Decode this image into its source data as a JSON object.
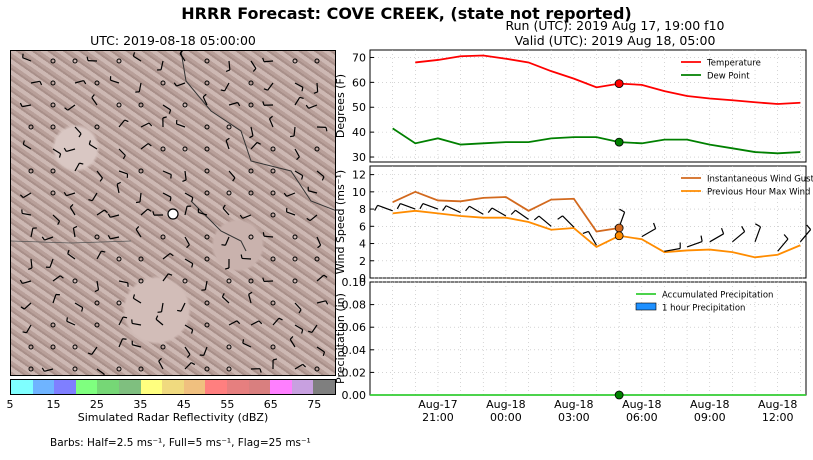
{
  "header": {
    "title": "HRRR Forecast: COVE CREEK, (state not reported)",
    "run": "Run (UTC): 2019 Aug 17, 19:00 f10",
    "valid": "Valid (UTC): 2019 Aug 18, 05:00"
  },
  "map": {
    "title": "UTC: 2019-08-18 05:00:00",
    "colorbar": {
      "label": "Simulated Radar Reflectivity (dBZ)",
      "ticks": [
        "5",
        "15",
        "25",
        "35",
        "45",
        "55",
        "65",
        "75"
      ],
      "colors": [
        "#7fffff",
        "#6fb4ff",
        "#7f7fff",
        "#7fff7f",
        "#76d776",
        "#7fbf7f",
        "#ffff7f",
        "#f0da7f",
        "#f0c07f",
        "#ff7f7f",
        "#e67f7f",
        "#d97f7f",
        "#ff7fff",
        "#c8a0e0",
        "#7f7f7f"
      ]
    },
    "barbs_note": "Barbs: Half=2.5 ms⁻¹, Full=5 ms⁻¹, Flag=25 ms⁻¹"
  },
  "chart_data": [
    {
      "type": "line",
      "ylabel": "Degrees (F)",
      "ylim": [
        28,
        73
      ],
      "yticks": [
        30,
        40,
        50,
        60,
        70
      ],
      "x_hours_labels": [
        "Aug-17\n21:00",
        "Aug-18\n00:00",
        "Aug-18\n03:00",
        "Aug-18\n06:00",
        "Aug-18\n09:00",
        "Aug-18\n12:00"
      ],
      "legend": "top-right",
      "grid": true,
      "series": [
        {
          "name": "Temperature",
          "color": "#ff0000",
          "x": [
            "2019-08-17 20:00",
            "2019-08-17 21:00",
            "2019-08-17 22:00",
            "2019-08-17 23:00",
            "2019-08-18 00:00",
            "2019-08-18 01:00",
            "2019-08-18 02:00",
            "2019-08-18 03:00",
            "2019-08-18 04:00",
            "2019-08-18 05:00",
            "2019-08-18 06:00",
            "2019-08-18 07:00",
            "2019-08-18 08:00",
            "2019-08-18 09:00",
            "2019-08-18 10:00",
            "2019-08-18 11:00",
            "2019-08-18 12:00",
            "2019-08-18 13:00"
          ],
          "values": [
            68,
            69,
            70.5,
            70.8,
            69.5,
            68,
            64.5,
            61.5,
            58,
            59.5,
            59,
            56.5,
            54.5,
            53.5,
            52.8,
            52,
            51.3,
            51.8
          ]
        },
        {
          "name": "Dew Point",
          "color": "#008000",
          "x": [
            "2019-08-17 19:00",
            "2019-08-17 20:00",
            "2019-08-17 21:00",
            "2019-08-17 22:00",
            "2019-08-17 23:00",
            "2019-08-18 00:00",
            "2019-08-18 01:00",
            "2019-08-18 02:00",
            "2019-08-18 03:00",
            "2019-08-18 04:00",
            "2019-08-18 05:00",
            "2019-08-18 06:00",
            "2019-08-18 07:00",
            "2019-08-18 08:00",
            "2019-08-18 09:00",
            "2019-08-18 10:00",
            "2019-08-18 11:00",
            "2019-08-18 12:00",
            "2019-08-18 13:00"
          ],
          "values": [
            41.5,
            35.5,
            37.5,
            35,
            35.5,
            36,
            36,
            37.5,
            38,
            38,
            36,
            35.5,
            37,
            37,
            35,
            33.5,
            32,
            31.5,
            32
          ]
        }
      ],
      "marker": {
        "x": "2019-08-18 05:00",
        "values": [
          59.5,
          36
        ]
      }
    },
    {
      "type": "line",
      "ylabel": "Wind Speed (ms⁻¹)",
      "ylim": [
        0,
        13
      ],
      "yticks": [
        0,
        2,
        4,
        6,
        8,
        10,
        12
      ],
      "legend": "top-right",
      "grid": true,
      "series": [
        {
          "name": "Instantaneous Wind Gust",
          "color": "#d2691e",
          "x": [
            "2019-08-17 19:00",
            "2019-08-17 20:00",
            "2019-08-17 21:00",
            "2019-08-17 22:00",
            "2019-08-17 23:00",
            "2019-08-18 00:00",
            "2019-08-18 01:00",
            "2019-08-18 02:00",
            "2019-08-18 03:00",
            "2019-08-18 04:00",
            "2019-08-18 05:00"
          ],
          "values": [
            8.8,
            10,
            9,
            8.9,
            9.3,
            9.4,
            7.8,
            9.1,
            9.2,
            5.4,
            5.8
          ]
        },
        {
          "name": "Previous Hour Max Wind",
          "color": "#ff8c00",
          "x": [
            "2019-08-17 19:00",
            "2019-08-17 20:00",
            "2019-08-17 21:00",
            "2019-08-17 22:00",
            "2019-08-17 23:00",
            "2019-08-18 00:00",
            "2019-08-18 01:00",
            "2019-08-18 02:00",
            "2019-08-18 03:00",
            "2019-08-18 04:00",
            "2019-08-18 05:00",
            "2019-08-18 06:00",
            "2019-08-18 07:00",
            "2019-08-18 08:00",
            "2019-08-18 09:00",
            "2019-08-18 10:00",
            "2019-08-18 11:00",
            "2019-08-18 12:00",
            "2019-08-18 13:00"
          ],
          "values": [
            7.5,
            7.8,
            7.5,
            7.2,
            7,
            7,
            6.5,
            5.6,
            5.8,
            3.6,
            4.9,
            4.5,
            3,
            3.2,
            3.3,
            3,
            2.4,
            2.7,
            3.8
          ]
        }
      ],
      "barbs": [
        {
          "x": "2019-08-17 19:00",
          "y": 7.8,
          "dir": 290,
          "spd": 7.5
        },
        {
          "x": "2019-08-17 20:00",
          "y": 8,
          "dir": 290,
          "spd": 7.8
        },
        {
          "x": "2019-08-17 21:00",
          "y": 8,
          "dir": 290,
          "spd": 7.5
        },
        {
          "x": "2019-08-17 22:00",
          "y": 7.6,
          "dir": 295,
          "spd": 7.2
        },
        {
          "x": "2019-08-17 23:00",
          "y": 7.4,
          "dir": 300,
          "spd": 7
        },
        {
          "x": "2019-08-18 00:00",
          "y": 7.2,
          "dir": 300,
          "spd": 7
        },
        {
          "x": "2019-08-18 01:00",
          "y": 6.8,
          "dir": 305,
          "spd": 6.5
        },
        {
          "x": "2019-08-18 02:00",
          "y": 6,
          "dir": 310,
          "spd": 5.6
        },
        {
          "x": "2019-08-18 03:00",
          "y": 5.9,
          "dir": 315,
          "spd": 5.8
        },
        {
          "x": "2019-08-18 04:00",
          "y": 3.8,
          "dir": 330,
          "spd": 3.6
        },
        {
          "x": "2019-08-18 05:00",
          "y": 5.9,
          "dir": 20,
          "spd": 5
        },
        {
          "x": "2019-08-18 06:00",
          "y": 4.8,
          "dir": 60,
          "spd": 4.5
        },
        {
          "x": "2019-08-18 07:00",
          "y": 3.1,
          "dir": 80,
          "spd": 3
        },
        {
          "x": "2019-08-18 08:00",
          "y": 3.6,
          "dir": 70,
          "spd": 3.2
        },
        {
          "x": "2019-08-18 09:00",
          "y": 4.2,
          "dir": 60,
          "spd": 3.3
        },
        {
          "x": "2019-08-18 10:00",
          "y": 4.2,
          "dir": 50,
          "spd": 3
        },
        {
          "x": "2019-08-18 11:00",
          "y": 4.2,
          "dir": 20,
          "spd": 2.4
        },
        {
          "x": "2019-08-18 12:00",
          "y": 3.1,
          "dir": 40,
          "spd": 2.7
        },
        {
          "x": "2019-08-18 13:00",
          "y": 4.2,
          "dir": 40,
          "spd": 3.8
        }
      ],
      "marker": {
        "x": "2019-08-18 05:00",
        "values": [
          5.8,
          4.9
        ]
      }
    },
    {
      "type": "bar",
      "ylabel": "Precipitation (in)",
      "ylim": [
        0,
        0.1
      ],
      "yticks": [
        "0.00",
        "0.02",
        "0.04",
        "0.06",
        "0.08",
        "0.10"
      ],
      "legend": "top-right",
      "grid": true,
      "series": [
        {
          "name": "Accumulated Precipitation",
          "color": "#32cd32",
          "values_all": 0
        },
        {
          "name": "1 hour Precipitation",
          "color": "#1e90ff",
          "values_all": 0
        }
      ],
      "marker": {
        "x": "2019-08-18 05:00",
        "values": [
          0
        ]
      }
    }
  ],
  "colors": {
    "marker_red": "#ff0000",
    "marker_green": "#008000",
    "marker_orange": "#ff8c00"
  }
}
